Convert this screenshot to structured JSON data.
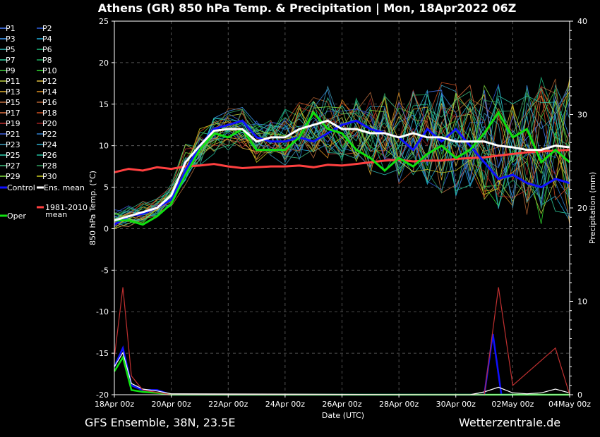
{
  "title": "Athens  (GR)  850 hPa Temp. & Precipitation | Mon, 18Apr2022 06Z",
  "footer_left": "GFS Ensemble, 38N, 23.5E",
  "footer_right": "Wetterzentrale.de",
  "chart_data": {
    "type": "line",
    "title": "Athens  (GR)  850 hPa Temp. & Precipitation | Mon, 18Apr2022 06Z",
    "xlabel": "Date (UTC)",
    "ylabel": "850 hPa Temp. (°C)",
    "y2label": "Precipitation (mm)",
    "x_start": "18Apr 00z",
    "x_end": "04May 00z",
    "x_tick_labels": [
      "18Apr 00z",
      "20Apr 00z",
      "22Apr 00z",
      "24Apr 00z",
      "26Apr 00z",
      "28Apr 00z",
      "30Apr 00z",
      "02May 00z",
      "04May 00z"
    ],
    "ylim": [
      -20,
      25
    ],
    "y_ticks": [
      25,
      20,
      15,
      10,
      5,
      0,
      -5,
      -10,
      -15,
      -20
    ],
    "y2lim": [
      0,
      40
    ],
    "y2_ticks": [
      40,
      30,
      20,
      10,
      0
    ],
    "grid": true,
    "legend_position": "left",
    "legend": [
      {
        "label": "P1",
        "color": "#4a7fff"
      },
      {
        "label": "P2",
        "color": "#3060e0"
      },
      {
        "label": "P3",
        "color": "#40a0ff"
      },
      {
        "label": "P4",
        "color": "#20b0e0"
      },
      {
        "label": "P5",
        "color": "#30c0c0"
      },
      {
        "label": "P6",
        "color": "#20c080"
      },
      {
        "label": "P7",
        "color": "#30d0a0"
      },
      {
        "label": "P8",
        "color": "#20b060"
      },
      {
        "label": "P9",
        "color": "#40d040"
      },
      {
        "label": "P10",
        "color": "#30e030"
      },
      {
        "label": "P11",
        "color": "#c0d040"
      },
      {
        "label": "P12",
        "color": "#e0c040"
      },
      {
        "label": "P13",
        "color": "#e0b030"
      },
      {
        "label": "P14",
        "color": "#e09020"
      },
      {
        "label": "P15",
        "color": "#c07040"
      },
      {
        "label": "P16",
        "color": "#b06030"
      },
      {
        "label": "P17",
        "color": "#e07040"
      },
      {
        "label": "P18",
        "color": "#d05020"
      },
      {
        "label": "P19",
        "color": "#c03030"
      },
      {
        "label": "P20",
        "color": "#a02020"
      },
      {
        "label": "P21",
        "color": "#4060e0"
      },
      {
        "label": "P22",
        "color": "#3080d0"
      },
      {
        "label": "P23",
        "color": "#40a0c0"
      },
      {
        "label": "P24",
        "color": "#30b0d0"
      },
      {
        "label": "P25",
        "color": "#30d0b0"
      },
      {
        "label": "P26",
        "color": "#20c0a0"
      },
      {
        "label": "P27",
        "color": "#40c080"
      },
      {
        "label": "P28",
        "color": "#30a060"
      },
      {
        "label": "P29",
        "color": "#80e040"
      },
      {
        "label": "P30",
        "color": "#d0d020"
      },
      {
        "label": "Control",
        "color": "#1010ff"
      },
      {
        "label": "Ens. mean",
        "color": "#ffffff"
      },
      {
        "label": "1981-2010 mean",
        "color": "#ff4040"
      },
      {
        "label": "Oper",
        "color": "#10e010"
      }
    ],
    "series": [
      {
        "name": "Control",
        "color": "#1010ff",
        "x": [
          0,
          0.5,
          1,
          1.5,
          2,
          2.5,
          3,
          3.5,
          4,
          4.5,
          5,
          5.5,
          6,
          6.5,
          7,
          7.5,
          8,
          8.5,
          9,
          9.5,
          10,
          10.5,
          11,
          11.5,
          12,
          12.5,
          13,
          13.5,
          14,
          14.5,
          15,
          15.5,
          16
        ],
        "values": [
          0.5,
          1.5,
          1.8,
          2.5,
          3.5,
          7,
          10,
          12,
          12.5,
          13,
          11,
          10.5,
          10.5,
          11,
          10.5,
          11.5,
          12.5,
          13,
          12,
          11.5,
          11,
          9.5,
          12,
          10.5,
          12,
          10,
          8,
          6,
          6.5,
          5.5,
          5,
          6,
          5.5
        ]
      },
      {
        "name": "Oper",
        "color": "#10e010",
        "x": [
          0,
          0.5,
          1,
          1.5,
          2,
          2.5,
          3,
          3.5,
          4,
          4.5,
          5,
          5.5,
          6,
          6.5,
          7,
          7.5,
          8,
          8.5,
          9,
          9.5,
          10,
          10.5,
          11,
          11.5,
          12,
          12.5,
          13,
          13.5,
          14,
          14.5,
          15,
          15.5,
          16
        ],
        "values": [
          1,
          1,
          0.5,
          1.5,
          3,
          6.5,
          9.5,
          11.5,
          11,
          12,
          9.5,
          9.5,
          9.5,
          11,
          14,
          12,
          11.5,
          9.5,
          8.5,
          7,
          8.5,
          7.5,
          9,
          10,
          8.5,
          9.5,
          11.5,
          14,
          11,
          12,
          8,
          9.5,
          8
        ]
      },
      {
        "name": "Ens. mean",
        "color": "#ffffff",
        "x": [
          0,
          0.5,
          1,
          1.5,
          2,
          2.5,
          3,
          3.5,
          4,
          4.5,
          5,
          5.5,
          6,
          6.5,
          7,
          7.5,
          8,
          8.5,
          9,
          9.5,
          10,
          10.5,
          11,
          11.5,
          12,
          12.5,
          13,
          13.5,
          14,
          14.5,
          15,
          15.5,
          16
        ],
        "values": [
          1,
          1.5,
          2,
          2.5,
          4,
          8,
          10,
          11.8,
          12,
          12,
          10.5,
          11,
          11,
          12,
          12.5,
          13,
          12,
          12,
          11.5,
          11.5,
          11,
          11.5,
          11,
          11,
          10.5,
          10.5,
          10.5,
          10,
          9.8,
          9.5,
          9.5,
          10,
          9.8
        ]
      },
      {
        "name": "1981-2010 mean",
        "color": "#ff4040",
        "x": [
          0,
          0.5,
          1,
          1.5,
          2,
          2.5,
          3,
          3.5,
          4,
          4.5,
          5,
          5.5,
          6,
          6.5,
          7,
          7.5,
          8,
          8.5,
          9,
          9.5,
          10,
          10.5,
          11,
          11.5,
          12,
          12.5,
          13,
          13.5,
          14,
          14.5,
          15,
          15.5,
          16
        ],
        "values": [
          6.8,
          7.2,
          7,
          7.4,
          7.2,
          7.5,
          7.6,
          7.8,
          7.5,
          7.3,
          7.4,
          7.5,
          7.5,
          7.6,
          7.4,
          7.7,
          7.6,
          7.8,
          8,
          8.2,
          8.3,
          8.1,
          8.2,
          8.2,
          8.4,
          8.5,
          8.6,
          8.8,
          9,
          9.2,
          9.3,
          9.4,
          9.5
        ]
      }
    ],
    "precip_series": [
      {
        "name": "Control",
        "color": "#1010ff",
        "x": [
          0,
          0.3,
          0.6,
          1,
          1.5,
          2,
          2.5,
          13,
          13.3,
          13.6,
          14
        ],
        "values": [
          3,
          5,
          1,
          0.5,
          0.5,
          0,
          0,
          0,
          6.5,
          0,
          0
        ]
      },
      {
        "name": "Oper",
        "color": "#10e010",
        "x": [
          0,
          0.3,
          0.6,
          1,
          1.5,
          2,
          16
        ],
        "values": [
          2.5,
          4,
          0.5,
          0.3,
          0.2,
          0,
          0
        ]
      },
      {
        "name": "Ens. mean",
        "color": "#ffffff",
        "x": [
          0,
          0.3,
          0.6,
          1,
          1.5,
          2,
          12,
          12.5,
          13,
          13.5,
          14,
          14.5,
          15,
          15.5,
          16
        ],
        "values": [
          3,
          4.5,
          1.2,
          0.6,
          0.4,
          0.1,
          0,
          0,
          0.3,
          0.8,
          0.2,
          0.1,
          0.2,
          0.6,
          0.2
        ]
      },
      {
        "name": "P19",
        "color": "#c03030",
        "x": [
          0,
          0.3,
          0.6,
          1,
          2,
          13,
          13.5,
          14,
          15.5,
          16
        ],
        "values": [
          4,
          11.5,
          2,
          0.5,
          0,
          0,
          11.5,
          1,
          5,
          0
        ]
      }
    ]
  }
}
